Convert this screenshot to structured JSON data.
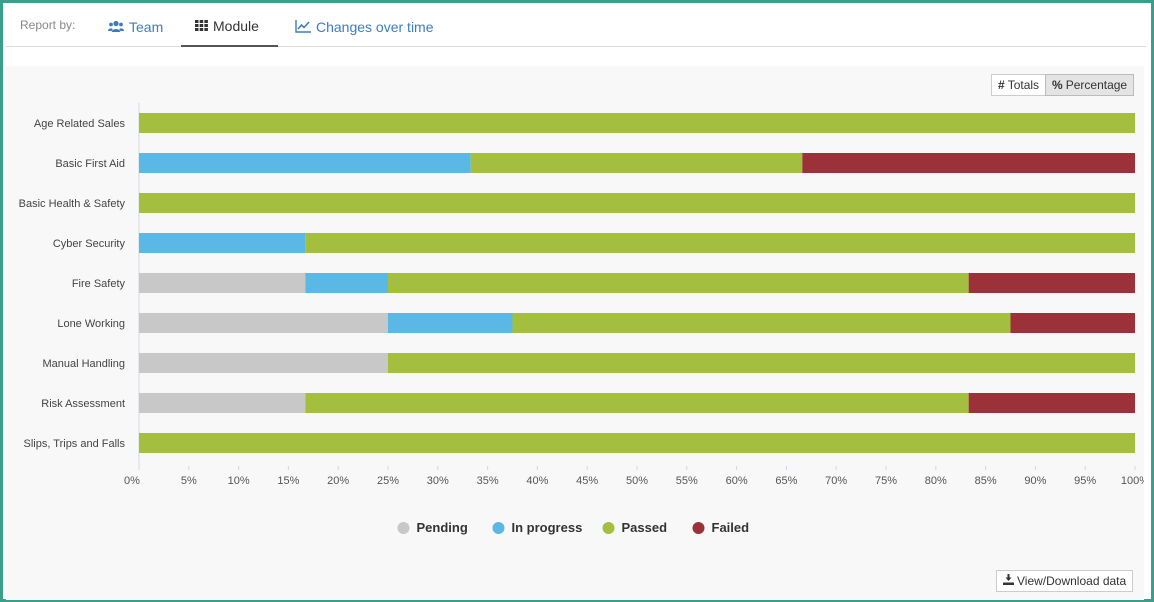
{
  "tabs": {
    "report_by": "Report by:",
    "items": [
      {
        "label": "Team",
        "icon": "users-icon"
      },
      {
        "label": "Module",
        "icon": "grid-icon"
      },
      {
        "label": "Changes over time",
        "icon": "line-chart-icon"
      }
    ],
    "active": 1
  },
  "toggle": {
    "totals_label": "Totals",
    "percentage_label": "Percentage",
    "active": "percentage"
  },
  "download_label": "View/Download data",
  "colors": {
    "pending": "#c8c8c8",
    "in_progress": "#5bb8e4",
    "passed": "#a4be3f",
    "failed": "#9b3139",
    "link": "#3c7dbf"
  },
  "chart_data": {
    "type": "bar",
    "orientation": "horizontal",
    "stacked": true,
    "categories": [
      "Age Related Sales",
      "Basic First Aid",
      "Basic Health & Safety",
      "Cyber Security",
      "Fire Safety",
      "Lone Working",
      "Manual Handling",
      "Risk Assessment",
      "Slips, Trips and Falls"
    ],
    "series": [
      {
        "name": "Pending",
        "color": "#c8c8c8",
        "values": [
          0,
          0,
          0,
          0,
          16.7,
          25,
          25,
          16.7,
          0
        ]
      },
      {
        "name": "In progress",
        "color": "#5bb8e4",
        "values": [
          0,
          33.3,
          0,
          16.7,
          8.3,
          12.5,
          0,
          0,
          0
        ]
      },
      {
        "name": "Passed",
        "color": "#a4be3f",
        "values": [
          100,
          33.3,
          100,
          83.3,
          58.3,
          50,
          75,
          66.6,
          100
        ]
      },
      {
        "name": "Failed",
        "color": "#9b3139",
        "values": [
          0,
          33.4,
          0,
          0,
          16.7,
          12.5,
          0,
          16.7,
          0
        ]
      }
    ],
    "xlim": [
      0,
      100
    ],
    "xticks": [
      "0%",
      "5%",
      "10%",
      "15%",
      "20%",
      "25%",
      "30%",
      "35%",
      "40%",
      "45%",
      "50%",
      "55%",
      "60%",
      "65%",
      "70%",
      "75%",
      "80%",
      "85%",
      "90%",
      "95%",
      "100%"
    ],
    "legend_position": "bottom-center",
    "grid": false
  }
}
